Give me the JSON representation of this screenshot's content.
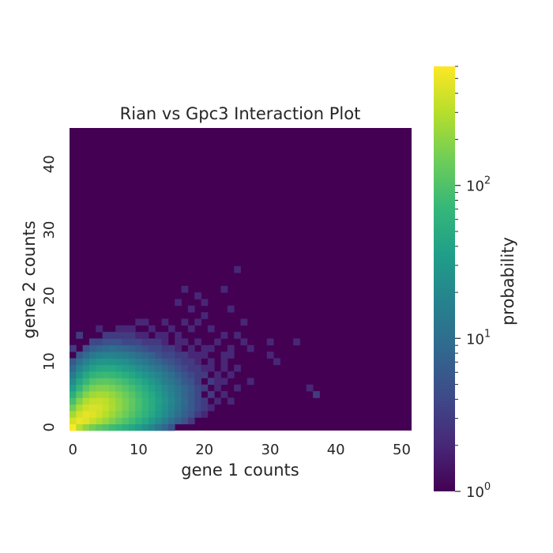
{
  "chart_data": {
    "type": "heatmap",
    "title": "Rian vs Gpc3 Interaction Plot",
    "xlabel": "gene 1 counts",
    "ylabel": "gene 2 counts",
    "colorbar_label": "probability",
    "colormap": "viridis",
    "colorbar_scale": "log",
    "colorbar_range": [
      1,
      600
    ],
    "colorbar_major_ticks": [
      {
        "value": 1,
        "label": "10",
        "exp": "0"
      },
      {
        "value": 10,
        "label": "10",
        "exp": "1"
      },
      {
        "value": 100,
        "label": "10",
        "exp": "2"
      }
    ],
    "xlim": [
      0,
      52
    ],
    "ylim": [
      0,
      46
    ],
    "xticks": [
      0,
      10,
      20,
      30,
      40,
      50
    ],
    "yticks": [
      0,
      10,
      20,
      30,
      40
    ],
    "background_value": 1,
    "grid": false,
    "cells": [
      [
        0,
        0,
        650
      ],
      [
        1,
        0,
        300
      ],
      [
        2,
        0,
        200
      ],
      [
        3,
        0,
        150
      ],
      [
        4,
        0,
        120
      ],
      [
        5,
        0,
        100
      ],
      [
        6,
        0,
        80
      ],
      [
        7,
        0,
        70
      ],
      [
        8,
        0,
        55
      ],
      [
        9,
        0,
        45
      ],
      [
        10,
        0,
        35
      ],
      [
        11,
        0,
        25
      ],
      [
        12,
        0,
        18
      ],
      [
        13,
        0,
        12
      ],
      [
        14,
        0,
        8
      ],
      [
        15,
        0,
        5
      ],
      [
        0,
        1,
        400
      ],
      [
        1,
        1,
        500
      ],
      [
        2,
        1,
        450
      ],
      [
        3,
        1,
        350
      ],
      [
        4,
        1,
        280
      ],
      [
        5,
        1,
        220
      ],
      [
        6,
        1,
        170
      ],
      [
        7,
        1,
        130
      ],
      [
        8,
        1,
        100
      ],
      [
        9,
        1,
        80
      ],
      [
        10,
        1,
        60
      ],
      [
        11,
        1,
        45
      ],
      [
        12,
        1,
        32
      ],
      [
        13,
        1,
        22
      ],
      [
        14,
        1,
        15
      ],
      [
        15,
        1,
        10
      ],
      [
        16,
        1,
        7
      ],
      [
        17,
        1,
        5
      ],
      [
        18,
        1,
        3
      ],
      [
        0,
        2,
        250
      ],
      [
        1,
        2,
        400
      ],
      [
        2,
        2,
        480
      ],
      [
        3,
        2,
        450
      ],
      [
        4,
        2,
        380
      ],
      [
        5,
        2,
        300
      ],
      [
        6,
        2,
        230
      ],
      [
        7,
        2,
        180
      ],
      [
        8,
        2,
        140
      ],
      [
        9,
        2,
        105
      ],
      [
        10,
        2,
        80
      ],
      [
        11,
        2,
        60
      ],
      [
        12,
        2,
        45
      ],
      [
        13,
        2,
        32
      ],
      [
        14,
        2,
        22
      ],
      [
        15,
        2,
        15
      ],
      [
        16,
        2,
        10
      ],
      [
        17,
        2,
        7
      ],
      [
        18,
        2,
        5
      ],
      [
        19,
        2,
        3
      ],
      [
        20,
        2,
        2
      ],
      [
        0,
        3,
        150
      ],
      [
        1,
        3,
        280
      ],
      [
        2,
        3,
        380
      ],
      [
        3,
        3,
        420
      ],
      [
        4,
        3,
        400
      ],
      [
        5,
        3,
        340
      ],
      [
        6,
        3,
        270
      ],
      [
        7,
        3,
        210
      ],
      [
        8,
        3,
        160
      ],
      [
        9,
        3,
        120
      ],
      [
        10,
        3,
        90
      ],
      [
        11,
        3,
        68
      ],
      [
        12,
        3,
        50
      ],
      [
        13,
        3,
        36
      ],
      [
        14,
        3,
        25
      ],
      [
        15,
        3,
        17
      ],
      [
        16,
        3,
        12
      ],
      [
        17,
        3,
        8
      ],
      [
        18,
        3,
        6
      ],
      [
        19,
        3,
        4
      ],
      [
        20,
        3,
        3
      ],
      [
        21,
        3,
        2
      ],
      [
        0,
        4,
        90
      ],
      [
        1,
        4,
        180
      ],
      [
        2,
        4,
        280
      ],
      [
        3,
        4,
        340
      ],
      [
        4,
        4,
        350
      ],
      [
        5,
        4,
        320
      ],
      [
        6,
        4,
        260
      ],
      [
        7,
        4,
        205
      ],
      [
        8,
        4,
        160
      ],
      [
        9,
        4,
        122
      ],
      [
        10,
        4,
        92
      ],
      [
        11,
        4,
        70
      ],
      [
        12,
        4,
        52
      ],
      [
        13,
        4,
        38
      ],
      [
        14,
        4,
        27
      ],
      [
        15,
        4,
        19
      ],
      [
        16,
        4,
        13
      ],
      [
        17,
        4,
        9
      ],
      [
        18,
        4,
        6
      ],
      [
        19,
        4,
        4
      ],
      [
        20,
        4,
        3
      ],
      [
        22,
        4,
        2
      ],
      [
        24,
        4,
        2
      ],
      [
        0,
        5,
        55
      ],
      [
        1,
        5,
        110
      ],
      [
        2,
        5,
        180
      ],
      [
        3,
        5,
        240
      ],
      [
        4,
        5,
        260
      ],
      [
        5,
        5,
        250
      ],
      [
        6,
        5,
        215
      ],
      [
        7,
        5,
        175
      ],
      [
        8,
        5,
        140
      ],
      [
        9,
        5,
        108
      ],
      [
        10,
        5,
        82
      ],
      [
        11,
        5,
        62
      ],
      [
        12,
        5,
        46
      ],
      [
        13,
        5,
        34
      ],
      [
        14,
        5,
        24
      ],
      [
        15,
        5,
        17
      ],
      [
        16,
        5,
        12
      ],
      [
        17,
        5,
        8
      ],
      [
        18,
        5,
        6
      ],
      [
        19,
        5,
        4
      ],
      [
        21,
        5,
        3
      ],
      [
        23,
        5,
        2
      ],
      [
        37,
        5,
        3
      ],
      [
        0,
        6,
        35
      ],
      [
        1,
        6,
        70
      ],
      [
        2,
        6,
        115
      ],
      [
        3,
        6,
        160
      ],
      [
        4,
        6,
        180
      ],
      [
        5,
        6,
        180
      ],
      [
        6,
        6,
        160
      ],
      [
        7,
        6,
        135
      ],
      [
        8,
        6,
        110
      ],
      [
        9,
        6,
        88
      ],
      [
        10,
        6,
        68
      ],
      [
        11,
        6,
        52
      ],
      [
        12,
        6,
        39
      ],
      [
        13,
        6,
        29
      ],
      [
        14,
        6,
        21
      ],
      [
        15,
        6,
        15
      ],
      [
        16,
        6,
        11
      ],
      [
        17,
        6,
        8
      ],
      [
        18,
        6,
        6
      ],
      [
        19,
        6,
        4
      ],
      [
        20,
        6,
        3
      ],
      [
        22,
        6,
        2
      ],
      [
        25,
        6,
        2
      ],
      [
        36,
        6,
        2
      ],
      [
        0,
        7,
        22
      ],
      [
        1,
        7,
        45
      ],
      [
        2,
        7,
        72
      ],
      [
        3,
        7,
        100
      ],
      [
        4,
        7,
        115
      ],
      [
        5,
        7,
        120
      ],
      [
        6,
        7,
        110
      ],
      [
        7,
        7,
        95
      ],
      [
        8,
        7,
        80
      ],
      [
        9,
        7,
        64
      ],
      [
        10,
        7,
        50
      ],
      [
        11,
        7,
        39
      ],
      [
        12,
        7,
        30
      ],
      [
        13,
        7,
        22
      ],
      [
        14,
        7,
        16
      ],
      [
        15,
        7,
        12
      ],
      [
        16,
        7,
        9
      ],
      [
        17,
        7,
        6
      ],
      [
        18,
        7,
        5
      ],
      [
        19,
        7,
        3
      ],
      [
        21,
        7,
        3
      ],
      [
        22,
        7,
        2
      ],
      [
        23,
        7,
        2
      ],
      [
        27,
        7,
        2
      ],
      [
        0,
        8,
        14
      ],
      [
        1,
        8,
        28
      ],
      [
        2,
        8,
        45
      ],
      [
        3,
        8,
        62
      ],
      [
        4,
        8,
        72
      ],
      [
        5,
        8,
        76
      ],
      [
        6,
        8,
        72
      ],
      [
        7,
        8,
        63
      ],
      [
        8,
        8,
        54
      ],
      [
        9,
        8,
        44
      ],
      [
        10,
        8,
        35
      ],
      [
        11,
        8,
        28
      ],
      [
        12,
        8,
        22
      ],
      [
        13,
        8,
        17
      ],
      [
        14,
        8,
        13
      ],
      [
        15,
        8,
        10
      ],
      [
        16,
        8,
        7
      ],
      [
        17,
        8,
        5
      ],
      [
        18,
        8,
        4
      ],
      [
        19,
        8,
        3
      ],
      [
        20,
        8,
        3
      ],
      [
        22,
        8,
        2
      ],
      [
        24,
        8,
        2
      ],
      [
        0,
        9,
        9
      ],
      [
        1,
        9,
        18
      ],
      [
        2,
        9,
        28
      ],
      [
        3,
        9,
        38
      ],
      [
        4,
        9,
        45
      ],
      [
        5,
        9,
        48
      ],
      [
        6,
        9,
        46
      ],
      [
        7,
        9,
        41
      ],
      [
        8,
        9,
        36
      ],
      [
        9,
        9,
        30
      ],
      [
        10,
        9,
        24
      ],
      [
        11,
        9,
        19
      ],
      [
        12,
        9,
        15
      ],
      [
        13,
        9,
        12
      ],
      [
        14,
        9,
        9
      ],
      [
        15,
        9,
        7
      ],
      [
        16,
        9,
        5
      ],
      [
        17,
        9,
        4
      ],
      [
        18,
        9,
        3
      ],
      [
        19,
        9,
        3
      ],
      [
        20,
        9,
        2
      ],
      [
        21,
        9,
        2
      ],
      [
        23,
        9,
        2
      ],
      [
        25,
        9,
        2
      ],
      [
        0,
        10,
        6
      ],
      [
        1,
        10,
        11
      ],
      [
        2,
        10,
        17
      ],
      [
        3,
        10,
        23
      ],
      [
        4,
        10,
        27
      ],
      [
        5,
        10,
        29
      ],
      [
        6,
        10,
        28
      ],
      [
        7,
        10,
        26
      ],
      [
        8,
        10,
        23
      ],
      [
        9,
        10,
        19
      ],
      [
        10,
        10,
        16
      ],
      [
        11,
        10,
        13
      ],
      [
        12,
        10,
        10
      ],
      [
        13,
        10,
        8
      ],
      [
        14,
        10,
        6
      ],
      [
        15,
        10,
        5
      ],
      [
        16,
        10,
        4
      ],
      [
        17,
        10,
        3
      ],
      [
        18,
        10,
        3
      ],
      [
        19,
        10,
        2
      ],
      [
        21,
        10,
        2
      ],
      [
        23,
        10,
        2
      ],
      [
        31,
        10,
        2
      ],
      [
        1,
        11,
        6
      ],
      [
        2,
        11,
        9
      ],
      [
        3,
        11,
        13
      ],
      [
        4,
        11,
        16
      ],
      [
        5,
        11,
        17
      ],
      [
        6,
        11,
        17
      ],
      [
        7,
        11,
        16
      ],
      [
        8,
        11,
        14
      ],
      [
        9,
        11,
        12
      ],
      [
        10,
        11,
        10
      ],
      [
        11,
        11,
        8
      ],
      [
        12,
        11,
        7
      ],
      [
        13,
        11,
        5
      ],
      [
        14,
        11,
        4
      ],
      [
        15,
        11,
        4
      ],
      [
        16,
        11,
        3
      ],
      [
        17,
        11,
        3
      ],
      [
        18,
        11,
        2
      ],
      [
        19,
        11,
        2
      ],
      [
        20,
        11,
        2
      ],
      [
        23,
        11,
        2
      ],
      [
        24,
        11,
        2
      ],
      [
        30,
        11,
        2
      ],
      [
        0,
        12,
        3
      ],
      [
        2,
        12,
        5
      ],
      [
        3,
        12,
        7
      ],
      [
        4,
        12,
        8
      ],
      [
        5,
        12,
        9
      ],
      [
        6,
        12,
        10
      ],
      [
        7,
        12,
        9
      ],
      [
        8,
        12,
        8
      ],
      [
        9,
        12,
        7
      ],
      [
        10,
        12,
        6
      ],
      [
        11,
        12,
        5
      ],
      [
        12,
        12,
        4
      ],
      [
        13,
        12,
        4
      ],
      [
        14,
        12,
        3
      ],
      [
        15,
        12,
        3
      ],
      [
        16,
        12,
        2
      ],
      [
        18,
        12,
        2
      ],
      [
        20,
        12,
        2
      ],
      [
        21,
        12,
        2
      ],
      [
        24,
        12,
        2
      ],
      [
        27,
        12,
        2
      ],
      [
        3,
        13,
        4
      ],
      [
        4,
        13,
        4
      ],
      [
        5,
        13,
        5
      ],
      [
        6,
        13,
        5
      ],
      [
        7,
        13,
        5
      ],
      [
        8,
        13,
        4
      ],
      [
        9,
        13,
        4
      ],
      [
        10,
        13,
        4
      ],
      [
        11,
        13,
        3
      ],
      [
        12,
        13,
        3
      ],
      [
        13,
        13,
        3
      ],
      [
        14,
        13,
        2
      ],
      [
        16,
        13,
        2
      ],
      [
        17,
        13,
        2
      ],
      [
        19,
        13,
        2
      ],
      [
        22,
        13,
        2
      ],
      [
        26,
        13,
        2
      ],
      [
        30,
        13,
        2
      ],
      [
        34,
        13,
        2
      ],
      [
        1,
        14,
        3
      ],
      [
        5,
        14,
        3
      ],
      [
        6,
        14,
        3
      ],
      [
        7,
        14,
        3
      ],
      [
        8,
        14,
        3
      ],
      [
        9,
        14,
        3
      ],
      [
        10,
        14,
        2
      ],
      [
        11,
        14,
        2
      ],
      [
        13,
        14,
        2
      ],
      [
        14,
        14,
        2
      ],
      [
        16,
        14,
        2
      ],
      [
        23,
        14,
        2
      ],
      [
        25,
        14,
        2
      ],
      [
        4,
        15,
        2
      ],
      [
        7,
        15,
        2
      ],
      [
        8,
        15,
        2
      ],
      [
        9,
        15,
        2
      ],
      [
        12,
        15,
        2
      ],
      [
        15,
        15,
        2
      ],
      [
        18,
        15,
        2
      ],
      [
        21,
        15,
        2
      ],
      [
        10,
        16,
        2
      ],
      [
        11,
        16,
        2
      ],
      [
        14,
        16,
        2
      ],
      [
        17,
        16,
        2
      ],
      [
        19,
        16,
        2
      ],
      [
        26,
        16,
        2
      ],
      [
        20,
        17,
        2
      ],
      [
        18,
        18,
        2
      ],
      [
        24,
        18,
        2
      ],
      [
        16,
        19,
        2
      ],
      [
        20,
        19,
        2
      ],
      [
        19,
        20,
        2
      ],
      [
        17,
        21,
        2
      ],
      [
        23,
        21,
        2
      ],
      [
        25,
        24,
        2
      ]
    ]
  }
}
